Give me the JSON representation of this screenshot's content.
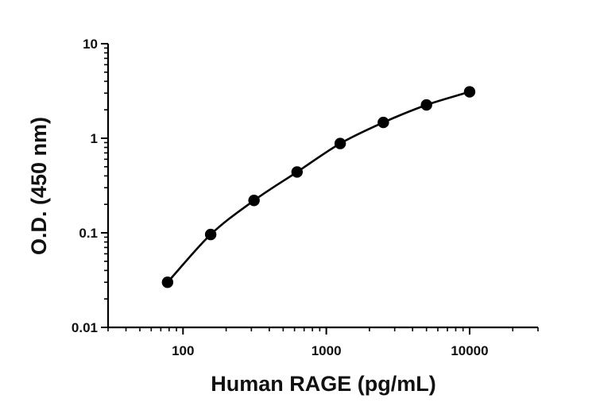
{
  "chart_data": {
    "type": "scatter",
    "title": "",
    "xlabel": "Human RAGE (pg/mL)",
    "ylabel": "O.D. (450 nm)",
    "xscale": "log",
    "yscale": "log",
    "xlim": [
      30,
      30000
    ],
    "ylim": [
      0.01,
      10
    ],
    "x_ticks": [
      {
        "value": 100,
        "label": "100"
      },
      {
        "value": 1000,
        "label": "1000"
      },
      {
        "value": 10000,
        "label": "10000"
      }
    ],
    "y_ticks": [
      {
        "value": 0.01,
        "label": "0.01"
      },
      {
        "value": 0.1,
        "label": "0.1"
      },
      {
        "value": 1,
        "label": "1"
      },
      {
        "value": 10,
        "label": "10"
      }
    ],
    "grid": false,
    "legend": "none",
    "fit_curve": true,
    "series": [
      {
        "x": [
          78,
          156,
          313,
          625,
          1250,
          2500,
          5000,
          10000
        ],
        "y": [
          0.03,
          0.096,
          0.22,
          0.44,
          0.88,
          1.47,
          2.25,
          3.1
        ]
      }
    ],
    "colors": {
      "marker": "#000000",
      "curve": "#000000",
      "axis": "#000000"
    }
  }
}
